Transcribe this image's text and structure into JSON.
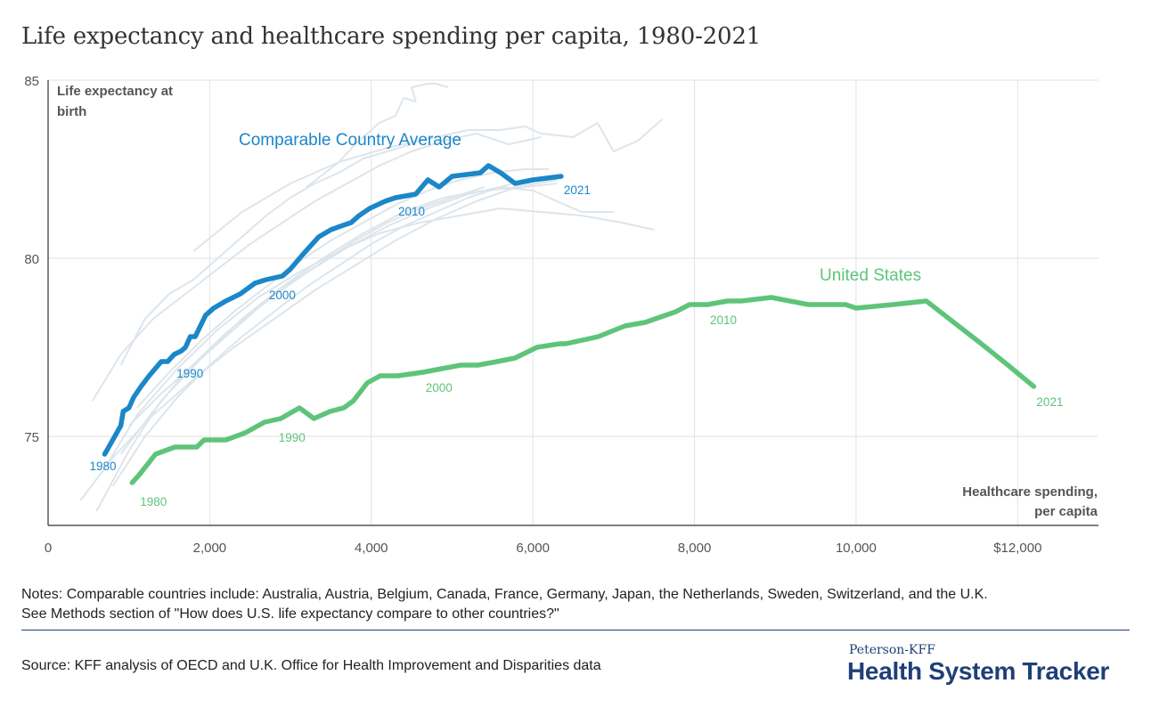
{
  "page": {
    "title": "Life expectancy and healthcare spending per capita, 1980-2021",
    "notes_line1": "Notes: Comparable countries include: Australia, Austria, Belgium, Canada, France, Germany, Japan, the Netherlands, Sweden, Switzerland, and the U.K.",
    "notes_line2": "See Methods section of \"How does U.S. life expectancy compare to other countries?\"",
    "source": "Source: KFF analysis of OECD and U.K. Office for Health Improvement and Disparities data",
    "brand_top": "Peterson-KFF",
    "brand_main": "Health System Tracker"
  },
  "chart_data": {
    "type": "line",
    "title": "Life expectancy and healthcare spending per capita, 1980-2021",
    "ylabel": "Life expectancy at birth",
    "ylabel_lines": [
      "Life expectancy at",
      "birth"
    ],
    "xlabel": "Healthcare spending, per capita",
    "xlabel_lines": [
      "Healthcare spending,",
      "per capita"
    ],
    "xlim": [
      0,
      13000
    ],
    "ylim": [
      72.5,
      85
    ],
    "x_ticks": [
      0,
      2000,
      4000,
      6000,
      8000,
      10000,
      12000
    ],
    "x_tick_labels": [
      "0",
      "2,000",
      "4,000",
      "6,000",
      "8,000",
      "10,000",
      "$12,000"
    ],
    "y_ticks": [
      75,
      80,
      85
    ],
    "y_tick_labels": [
      "75",
      "80",
      "85"
    ],
    "grid": true,
    "colors": {
      "comparable": "#1b87c9",
      "us": "#5ec47a",
      "background_lines": "#dde5ec",
      "grid": "#e2e2e2",
      "axis": "#333333",
      "text": "#555555"
    },
    "series": [
      {
        "name": "Comparable Country Average",
        "color": "#1b87c9",
        "x": [
          700,
          800,
          900,
          930,
          1000,
          1060,
          1150,
          1250,
          1400,
          1480,
          1560,
          1650,
          1700,
          1760,
          1820,
          1950,
          2050,
          2200,
          2380,
          2560,
          2700,
          2900,
          3000,
          3150,
          3230,
          3350,
          3500,
          3620,
          3750,
          3850,
          3980,
          4170,
          4300,
          4550,
          4700,
          4840,
          5000,
          5350,
          5450,
          5600,
          5780,
          6000,
          6350
        ],
        "y": [
          74.5,
          74.9,
          75.3,
          75.7,
          75.8,
          76.1,
          76.4,
          76.7,
          77.1,
          77.1,
          77.3,
          77.4,
          77.5,
          77.8,
          77.8,
          78.4,
          78.6,
          78.8,
          79.0,
          79.3,
          79.4,
          79.5,
          79.7,
          80.1,
          80.3,
          80.6,
          80.8,
          80.9,
          81.0,
          81.2,
          81.4,
          81.6,
          81.7,
          81.8,
          82.2,
          82.0,
          82.3,
          82.4,
          82.6,
          82.4,
          82.1,
          82.2,
          82.3
        ],
        "labels": [
          {
            "text": "1980",
            "x": 700,
            "y": 74.5
          },
          {
            "text": "1990",
            "x": 1580,
            "y": 77.1
          },
          {
            "text": "2000",
            "x": 2700,
            "y": 79.4
          },
          {
            "text": "2010",
            "x": 4300,
            "y": 81.7
          },
          {
            "text": "2021",
            "x": 6350,
            "y": 82.3
          }
        ],
        "series_label": "Comparable Country Average"
      },
      {
        "name": "United States",
        "color": "#5ec47a",
        "x": [
          1040,
          1120,
          1330,
          1570,
          1840,
          1930,
          2010,
          2200,
          2440,
          2680,
          2880,
          3110,
          3290,
          3490,
          3660,
          3780,
          3950,
          4110,
          4330,
          4640,
          4870,
          5110,
          5320,
          5560,
          5780,
          6050,
          6330,
          6410,
          6810,
          7140,
          7390,
          7770,
          7940,
          8160,
          8410,
          8580,
          8950,
          9410,
          9870,
          10000,
          10460,
          10870,
          11550,
          11880,
          12200
        ],
        "y": [
          73.7,
          73.9,
          74.5,
          74.7,
          74.7,
          74.9,
          74.9,
          74.9,
          75.1,
          75.4,
          75.5,
          75.8,
          75.5,
          75.7,
          75.8,
          76.0,
          76.5,
          76.7,
          76.7,
          76.8,
          76.9,
          77.0,
          77.0,
          77.1,
          77.2,
          77.5,
          77.6,
          77.6,
          77.8,
          78.1,
          78.2,
          78.5,
          78.7,
          78.7,
          78.8,
          78.8,
          78.9,
          78.7,
          78.7,
          78.6,
          78.7,
          78.8,
          77.6,
          77.0,
          76.4
        ],
        "labels": [
          {
            "text": "1980",
            "x": 1040,
            "y": 73.7
          },
          {
            "text": "1990",
            "x": 2820,
            "y": 75.4
          },
          {
            "text": "2000",
            "x": 4640,
            "y": 76.8
          },
          {
            "text": "2010",
            "x": 8160,
            "y": 78.7
          },
          {
            "text": "2021",
            "x": 12200,
            "y": 76.4
          }
        ],
        "series_label": "United States"
      }
    ],
    "background_series": [
      {
        "name": "comparable-country-1",
        "x": [
          400,
          800,
          1300,
          1800,
          2300,
          2800,
          3300,
          3800,
          4300,
          4800,
          5300,
          5800,
          6300
        ],
        "y": [
          73.2,
          74.4,
          75.6,
          76.6,
          77.5,
          78.3,
          79.1,
          79.8,
          80.5,
          81.1,
          81.6,
          82.0,
          82.2
        ]
      },
      {
        "name": "comparable-country-2",
        "x": [
          550,
          900,
          1300,
          1700,
          2100,
          2500,
          2900,
          3300,
          3700,
          4100,
          4500,
          4900,
          5300,
          5700,
          6100
        ],
        "y": [
          76.0,
          77.3,
          78.3,
          79.0,
          79.7,
          80.4,
          81.0,
          81.6,
          82.1,
          82.6,
          83.0,
          83.3,
          83.5,
          83.2,
          83.4
        ]
      },
      {
        "name": "comparable-country-3",
        "x": [
          3200,
          3600,
          3800,
          4100,
          4300,
          4400,
          4550,
          4500,
          4700,
          4800,
          4950
        ],
        "y": [
          82.0,
          82.7,
          83.2,
          83.8,
          84.0,
          84.5,
          84.4,
          84.8,
          84.9,
          84.9,
          84.8
        ]
      },
      {
        "name": "comparable-country-4",
        "x": [
          1800,
          2400,
          3000,
          3600,
          4200,
          4800,
          5200,
          5600,
          5900,
          6100,
          6500,
          6800,
          7000,
          7300,
          7600
        ],
        "y": [
          80.2,
          81.3,
          82.1,
          82.7,
          83.1,
          83.4,
          83.6,
          83.6,
          83.7,
          83.5,
          83.4,
          83.8,
          83.0,
          83.3,
          83.9
        ]
      },
      {
        "name": "comparable-country-5",
        "x": [
          700,
          1100,
          1600,
          2100,
          2600,
          3100,
          3600,
          4100,
          4600,
          5100,
          5600,
          6100,
          6600,
          7100,
          7500
        ],
        "y": [
          74.1,
          75.6,
          76.9,
          78.0,
          78.9,
          79.6,
          80.2,
          80.7,
          81.0,
          81.2,
          81.4,
          81.3,
          81.2,
          81.0,
          80.8
        ]
      },
      {
        "name": "comparable-country-6",
        "x": [
          900,
          1300,
          1700,
          2200,
          2700,
          3200,
          3700,
          4200,
          4700,
          5200,
          5600,
          6000,
          6300,
          6600,
          7000
        ],
        "y": [
          74.5,
          75.7,
          76.8,
          77.9,
          78.8,
          79.6,
          80.3,
          80.9,
          81.4,
          81.8,
          82.0,
          81.9,
          81.6,
          81.3,
          81.3
        ]
      },
      {
        "name": "comparable-country-7",
        "x": [
          600,
          1000,
          1400,
          1900,
          2400,
          2900,
          3400,
          3900,
          4400,
          4900,
          5400,
          5900,
          6300
        ],
        "y": [
          72.9,
          74.6,
          76.0,
          77.2,
          78.3,
          79.2,
          80.0,
          80.7,
          81.3,
          81.7,
          81.9,
          82.0,
          82.1
        ]
      },
      {
        "name": "comparable-country-8",
        "x": [
          800,
          1200,
          1600,
          2000,
          2400,
          2800,
          3200,
          3600,
          4000,
          4400,
          4800,
          5200,
          5600,
          5900
        ],
        "y": [
          73.6,
          75.0,
          76.1,
          77.0,
          77.8,
          78.5,
          79.2,
          79.8,
          80.4,
          80.9,
          81.3,
          81.7,
          82.0,
          82.2
        ]
      },
      {
        "name": "comparable-country-9",
        "x": [
          1000,
          1400,
          1800,
          2200,
          2600,
          3000,
          3400,
          3800,
          4200,
          4600,
          5000,
          5400
        ],
        "y": [
          75.3,
          76.2,
          77.0,
          77.8,
          78.6,
          79.3,
          79.9,
          80.5,
          81.0,
          81.4,
          81.7,
          82.0
        ]
      },
      {
        "name": "comparable-country-10",
        "x": [
          1100,
          1500,
          1900,
          2300,
          2700,
          3100,
          3500,
          3900,
          4300,
          4700,
          5100,
          5500,
          5900,
          6200
        ],
        "y": [
          75.8,
          76.8,
          77.7,
          78.5,
          79.2,
          79.9,
          80.5,
          81.0,
          81.5,
          81.9,
          82.2,
          82.4,
          82.5,
          82.5
        ]
      },
      {
        "name": "comparable-country-11",
        "x": [
          900,
          1200,
          1500,
          1800,
          2100,
          2400,
          2700,
          3000,
          3300,
          3600,
          3900,
          4200,
          4500
        ],
        "y": [
          77.0,
          78.3,
          79.0,
          79.4,
          80.0,
          80.6,
          81.2,
          81.7,
          82.1,
          82.4,
          82.8,
          83.0,
          83.2
        ]
      }
    ]
  }
}
